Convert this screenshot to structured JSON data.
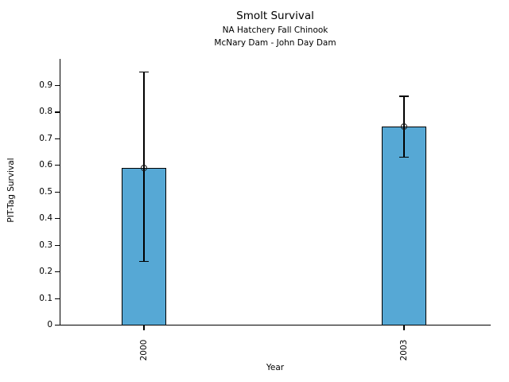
{
  "chart_data": {
    "type": "bar",
    "title": "Smolt Survival",
    "subtitle1": "NA Hatchery Fall Chinook",
    "subtitle2": "McNary Dam - John Day Dam",
    "xlabel": "Year",
    "ylabel": "PIT-Tag Survival",
    "categories": [
      "2000",
      "2003"
    ],
    "values": [
      0.59,
      0.745
    ],
    "error_low": [
      0.24,
      0.63
    ],
    "error_high": [
      0.95,
      0.86
    ],
    "ylim": [
      0,
      1.0
    ],
    "yticks": [
      0,
      0.1,
      0.2,
      0.3,
      0.4,
      0.5,
      0.6,
      0.7,
      0.8,
      0.9
    ],
    "ytick_labels": [
      "0",
      "0.1",
      "0.2",
      "0.3",
      "0.4",
      "0.5",
      "0.6",
      "0.7",
      "0.8",
      "0.9"
    ],
    "grid": false,
    "legend": "none",
    "marker": "open-circle",
    "colors": {
      "bar_fill": "#56A8D5",
      "bar_edge": "#000000",
      "error_bar": "#000000",
      "text": "#000000"
    }
  }
}
